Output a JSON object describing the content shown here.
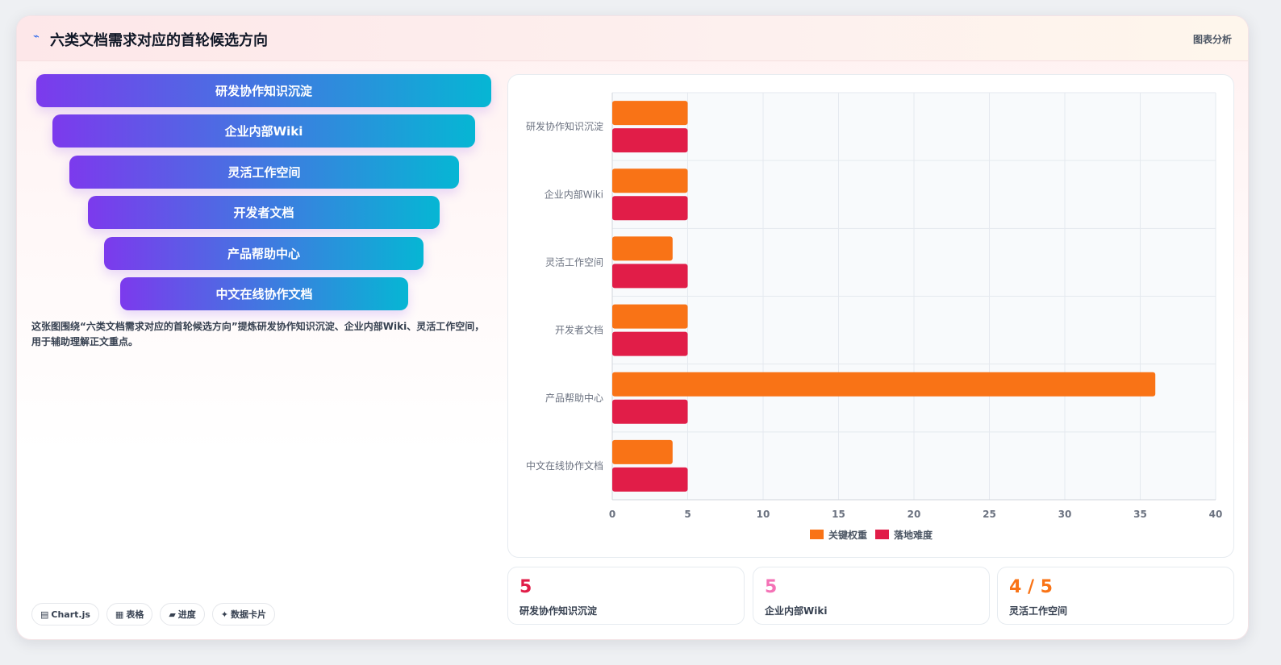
{
  "header": {
    "title": "六类文档需求对应的首轮候选方向",
    "right_label": "图表分析"
  },
  "funnel": {
    "items": [
      {
        "label": "研发协作知识沉淀"
      },
      {
        "label": "企业内部Wiki"
      },
      {
        "label": "灵活工作空间"
      },
      {
        "label": "开发者文档"
      },
      {
        "label": "产品帮助中心"
      },
      {
        "label": "中文在线协作文档"
      }
    ],
    "gradient_start": "#7c3aed",
    "gradient_end": "#06b6d4"
  },
  "description": "这张图围绕“六类文档需求对应的首轮候选方向”提炼研发协作知识沉淀、企业内部Wiki、灵活工作空间，用于辅助理解正文重点。",
  "tags": [
    {
      "icon": "table-icon",
      "glyph": "▤",
      "label": "Chart.js"
    },
    {
      "icon": "grid-icon",
      "glyph": "▦",
      "label": "表格"
    },
    {
      "icon": "progress-icon",
      "glyph": "▰",
      "label": "进度"
    },
    {
      "icon": "sparkle-icon",
      "glyph": "✦",
      "label": "数据卡片"
    }
  ],
  "chart_data": {
    "type": "bar",
    "orientation": "horizontal",
    "categories": [
      "研发协作知识沉淀",
      "企业内部Wiki",
      "灵活工作空间",
      "开发者文档",
      "产品帮助中心",
      "中文在线协作文档"
    ],
    "series": [
      {
        "name": "关键权重",
        "color": "#f97316",
        "values": [
          5,
          5,
          4,
          5,
          36,
          4
        ]
      },
      {
        "name": "落地难度",
        "color": "#e11d48",
        "values": [
          5,
          5,
          5,
          5,
          5,
          5
        ]
      }
    ],
    "xlim": [
      0,
      40
    ],
    "xticks": [
      0,
      5,
      10,
      15,
      20,
      25,
      30,
      35,
      40
    ],
    "grid": true,
    "legend": "bottom"
  },
  "stats": [
    {
      "value": "5",
      "label": "研发协作知识沉淀",
      "color": "#e11d48"
    },
    {
      "value": "5",
      "label": "企业内部Wiki",
      "color": "#f472b6"
    },
    {
      "value": "4 / 5",
      "label": "灵活工作空间",
      "color": "#f97316"
    }
  ]
}
